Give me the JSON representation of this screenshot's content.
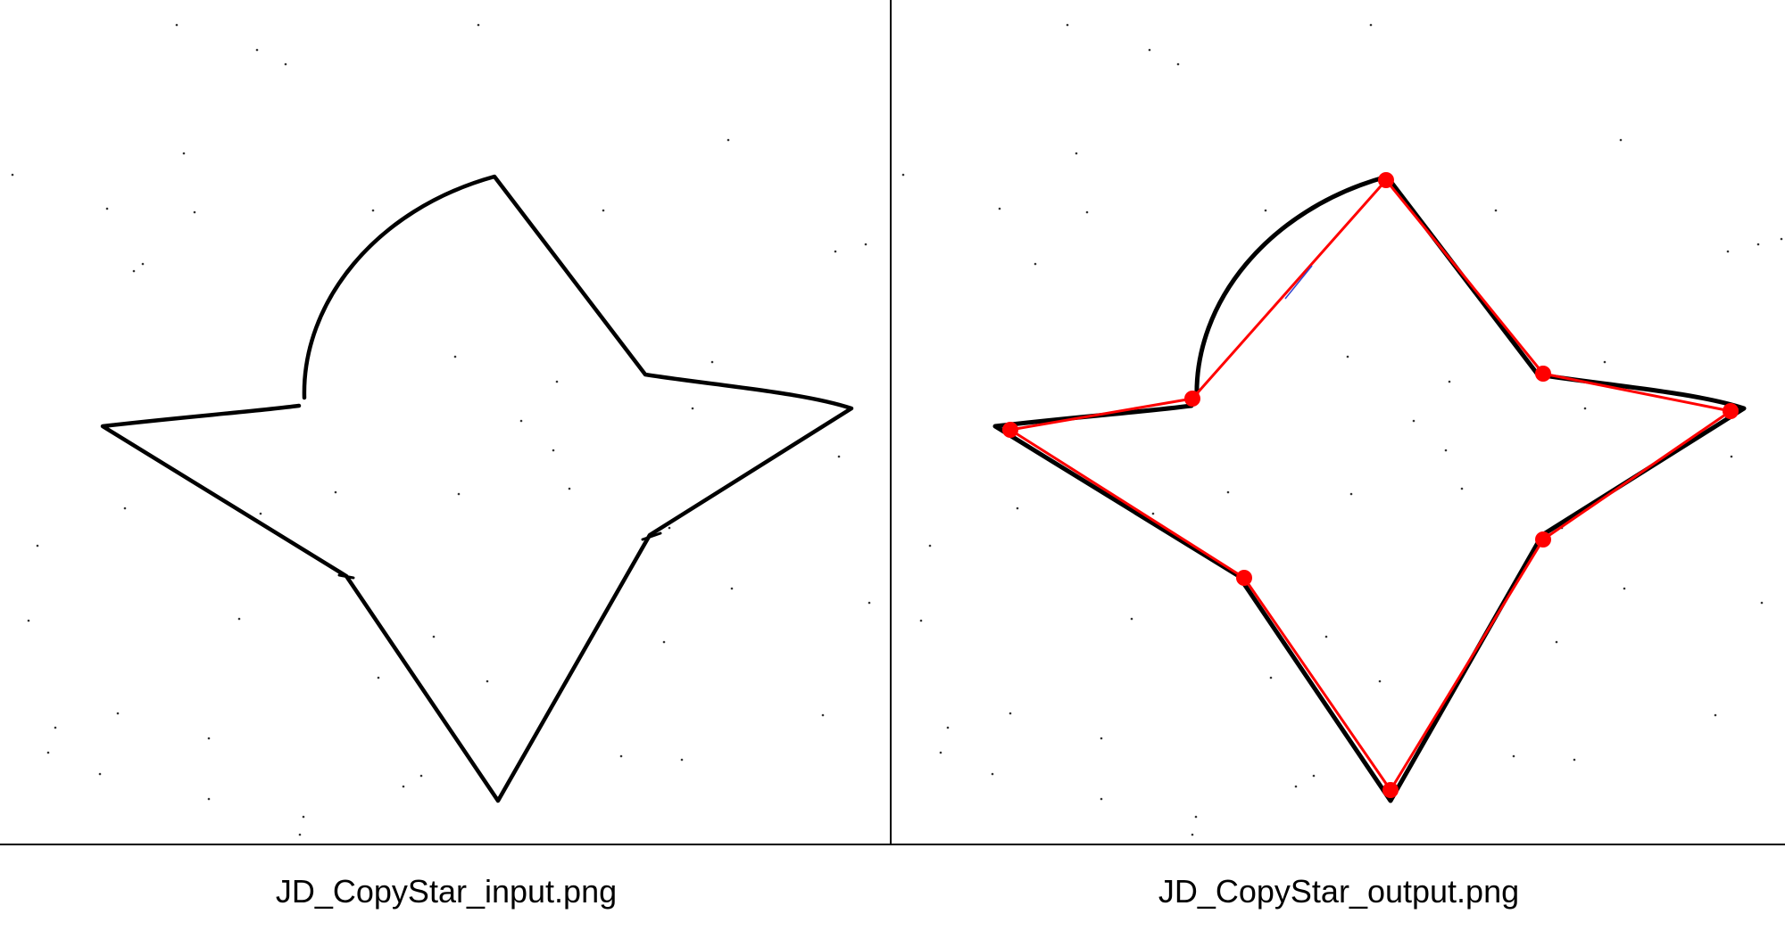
{
  "panels": {
    "input": {
      "caption": "JD_CopyStar_input.png"
    },
    "output": {
      "caption": "JD_CopyStar_output.png"
    }
  },
  "colors": {
    "stroke": "#000000",
    "overlay": "#ff0000",
    "overlay_vertex": "#ff0000",
    "background": "#ffffff",
    "divider": "#000000"
  }
}
